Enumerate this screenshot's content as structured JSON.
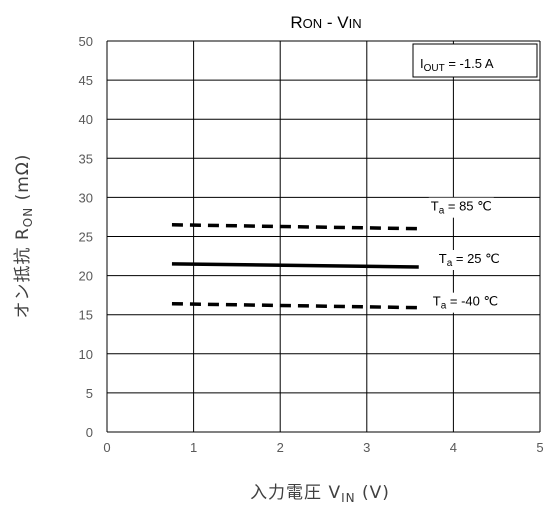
{
  "chart_data": {
    "type": "line",
    "title": {
      "main": "R",
      "main_sub": "ON",
      "sep": " - V",
      "sep_sub": "IN"
    },
    "xlabel": {
      "pre": "入力電圧  V",
      "sub": "IN",
      "post": "  (V)"
    },
    "ylabel": {
      "pre": "オン抵抗  R",
      "sub": "ON",
      "post": "  (mΩ)"
    },
    "xlim": [
      0,
      5
    ],
    "ylim": [
      0,
      50
    ],
    "xticks": [
      0,
      1,
      2,
      3,
      4,
      5
    ],
    "yticks": [
      0,
      5,
      10,
      15,
      20,
      25,
      30,
      35,
      40,
      45,
      50
    ],
    "grid": true,
    "condition": {
      "main": "I",
      "sub": "OUT",
      "rest": " = -1.5 A"
    },
    "series": [
      {
        "label_main": "T",
        "label_sub": "a",
        "label_rest": " = 85 ℃",
        "style": "dashed",
        "x": [
          0.75,
          3.6
        ],
        "y": [
          26.5,
          26.0
        ]
      },
      {
        "label_main": "T",
        "label_sub": "a",
        "label_rest": " = 25 ℃",
        "style": "solid",
        "x": [
          0.75,
          3.6
        ],
        "y": [
          21.5,
          21.1
        ]
      },
      {
        "label_main": "T",
        "label_sub": "a",
        "label_rest": " = -40 ℃",
        "style": "dashed",
        "x": [
          0.75,
          3.6
        ],
        "y": [
          16.4,
          15.9
        ]
      }
    ]
  }
}
